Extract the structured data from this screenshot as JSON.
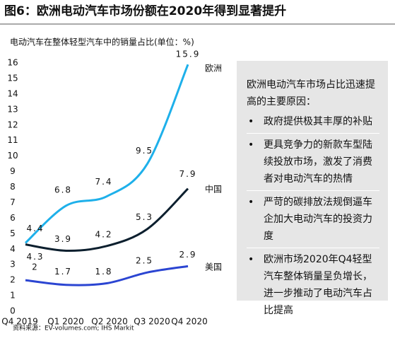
{
  "chart_data": {
    "type": "line",
    "title": "图6：欧洲电动汽车市场份额在2020年得到显著提升",
    "subtitle": "电动汽车在整体轻型汽车中的销量占比(单位：%)",
    "categories": [
      "Q4 2019",
      "Q1 2020",
      "Q2 2020",
      "Q3 2020",
      "Q4 2020"
    ],
    "series": [
      {
        "name": "欧洲",
        "color": "#1eb0ea",
        "values": [
          4.4,
          6.8,
          7.4,
          9.5,
          15.9
        ]
      },
      {
        "name": "中国",
        "color": "#0c1f2e",
        "values": [
          4.3,
          3.9,
          4.2,
          5.3,
          7.9
        ]
      },
      {
        "name": "美国",
        "color": "#2b45d2",
        "values": [
          2.0,
          1.7,
          1.8,
          2.5,
          2.9
        ]
      }
    ],
    "ylim": [
      0,
      16
    ],
    "yticks": [
      0,
      1,
      2,
      3,
      4,
      5,
      6,
      7,
      8,
      9,
      10,
      11,
      12,
      13,
      14,
      15,
      16
    ],
    "source": "资料来源：EV-volumes.com; IHS Markit",
    "annotations": {
      "heading": "欧洲电动汽车市场占比迅速提高的主要原因：",
      "bullets": [
        "政府提供极其丰厚的补贴",
        "更具竞争力的新款车型陆续投放市场，激发了消费者对电动汽车的热情",
        "严苛的碳排放法规倒逼车企加大电动汽车的投资力度",
        "欧洲市场2020年Q4轻型汽车整体销量呈负增长，进一步推动了电动汽车占比提高"
      ]
    }
  }
}
